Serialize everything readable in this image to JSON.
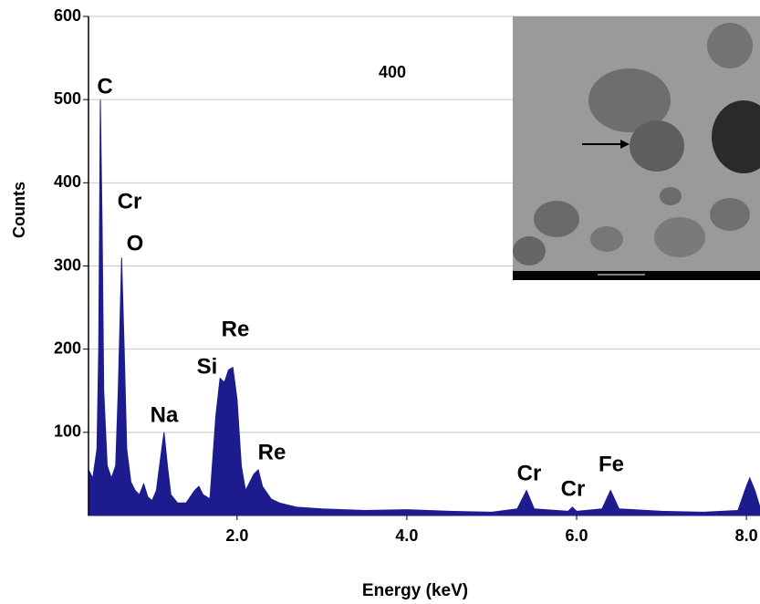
{
  "chart_data": {
    "type": "area",
    "xlabel": "Energy (keV)",
    "ylabel": "Counts",
    "color": "#1c1c8f",
    "grid": true,
    "xlim": [
      0.25,
      8.16
    ],
    "ylim": [
      0,
      600
    ],
    "xticks": [
      {
        "value": 2,
        "label": "2.0"
      },
      {
        "value": 4,
        "label": "4.0"
      },
      {
        "value": 6,
        "label": "6.0"
      },
      {
        "value": 8,
        "label": "8.0"
      }
    ],
    "yticks": [
      100,
      200,
      300,
      400,
      500,
      600
    ],
    "x": [
      0.25,
      0.3,
      0.35,
      0.37,
      0.39,
      0.41,
      0.43,
      0.47,
      0.52,
      0.57,
      0.6,
      0.64,
      0.67,
      0.7,
      0.75,
      0.8,
      0.85,
      0.9,
      0.95,
      1.0,
      1.05,
      1.1,
      1.14,
      1.18,
      1.22,
      1.3,
      1.4,
      1.5,
      1.55,
      1.6,
      1.68,
      1.75,
      1.8,
      1.85,
      1.9,
      1.95,
      2.0,
      2.05,
      2.1,
      2.2,
      2.25,
      2.3,
      2.4,
      2.5,
      2.7,
      3.0,
      3.5,
      4.0,
      4.5,
      5.0,
      5.3,
      5.41,
      5.5,
      5.9,
      5.95,
      6.0,
      6.3,
      6.4,
      6.5,
      7.0,
      7.5,
      7.9,
      8.0,
      8.04,
      8.1,
      8.16
    ],
    "values": [
      55,
      45,
      80,
      200,
      500,
      350,
      150,
      60,
      45,
      60,
      150,
      310,
      200,
      80,
      40,
      30,
      25,
      38,
      22,
      18,
      30,
      70,
      100,
      60,
      25,
      15,
      15,
      30,
      35,
      25,
      20,
      120,
      165,
      160,
      175,
      178,
      140,
      60,
      30,
      50,
      55,
      35,
      20,
      15,
      10,
      8,
      6,
      7,
      5,
      4,
      8,
      30,
      8,
      5,
      10,
      5,
      8,
      30,
      8,
      5,
      4,
      6,
      35,
      45,
      30,
      10
    ],
    "annotations": [
      "C",
      "Cr",
      "O",
      "Na",
      "Si",
      "Re",
      "Re",
      "Cr",
      "Cr",
      "Fe",
      "400"
    ]
  }
}
